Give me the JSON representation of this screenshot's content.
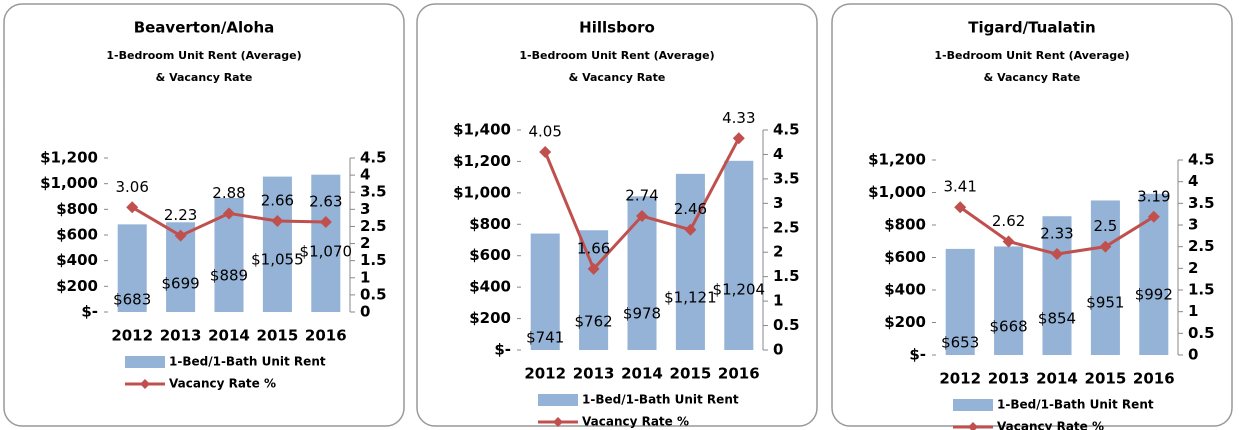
{
  "chart_data": [
    {
      "type": "bar-line",
      "title": "Beaverton/Aloha",
      "subtitle": [
        "1-Bedroom Unit Rent (Average)",
        "& Vacancy Rate"
      ],
      "categories": [
        "2012",
        "2013",
        "2014",
        "2015",
        "2016"
      ],
      "series": [
        {
          "name": "1-Bed/1-Bath Unit Rent",
          "type": "bar",
          "color": "#95b3d7",
          "values": [
            683,
            699,
            889,
            1055,
            1070
          ],
          "value_labels": [
            "$683",
            "$699",
            "$889",
            "$1,055",
            "$1,070"
          ]
        },
        {
          "name": "Vacancy Rate %",
          "type": "line",
          "axis": "y2",
          "color": "#c0504d",
          "values": [
            3.06,
            2.23,
            2.88,
            2.66,
            2.63
          ]
        }
      ],
      "ylim": [
        0,
        1200
      ],
      "yticks": [
        {
          "value": 0,
          "label": "$-"
        },
        {
          "value": 200,
          "label": "$200"
        },
        {
          "value": 400,
          "label": "$400"
        },
        {
          "value": 600,
          "label": "$600"
        },
        {
          "value": 800,
          "label": "$800"
        },
        {
          "value": 1000,
          "label": "$1,000"
        },
        {
          "value": 1200,
          "label": "$1,200"
        }
      ],
      "y2lim": [
        0,
        4.5
      ],
      "y2ticks": [
        0,
        0.5,
        1,
        1.5,
        2,
        2.5,
        3,
        3.5,
        4,
        4.5
      ],
      "legend": "bottom"
    },
    {
      "type": "bar-line",
      "title": "Hillsboro",
      "subtitle": [
        "1-Bedroom Unit Rent (Average)",
        "& Vacancy Rate"
      ],
      "categories": [
        "2012",
        "2013",
        "2014",
        "2015",
        "2016"
      ],
      "series": [
        {
          "name": "1-Bed/1-Bath Unit Rent",
          "type": "bar",
          "color": "#95b3d7",
          "values": [
            741,
            762,
            978,
            1121,
            1204
          ],
          "value_labels": [
            "$741",
            "$762",
            "$978",
            "$1,121",
            "$1,204"
          ]
        },
        {
          "name": "Vacancy Rate %",
          "type": "line",
          "axis": "y2",
          "color": "#c0504d",
          "values": [
            4.05,
            1.66,
            2.74,
            2.46,
            4.33
          ]
        }
      ],
      "ylim": [
        0,
        1400
      ],
      "yticks": [
        {
          "value": 0,
          "label": "$-"
        },
        {
          "value": 200,
          "label": "$200"
        },
        {
          "value": 400,
          "label": "$400"
        },
        {
          "value": 600,
          "label": "$600"
        },
        {
          "value": 800,
          "label": "$800"
        },
        {
          "value": 1000,
          "label": "$1,000"
        },
        {
          "value": 1200,
          "label": "$1,200"
        },
        {
          "value": 1400,
          "label": "$1,400"
        }
      ],
      "y2lim": [
        0,
        4.5
      ],
      "y2ticks": [
        0,
        0.5,
        1,
        1.5,
        2,
        2.5,
        3,
        3.5,
        4,
        4.5
      ],
      "legend": "bottom"
    },
    {
      "type": "bar-line",
      "title": "Tigard/Tualatin",
      "subtitle": [
        "1-Bedroom Unit Rent (Average)",
        "& Vacancy Rate"
      ],
      "categories": [
        "2012",
        "2013",
        "2014",
        "2015",
        "2016"
      ],
      "series": [
        {
          "name": "1-Bed/1-Bath Unit Rent",
          "type": "bar",
          "color": "#95b3d7",
          "values": [
            653,
            668,
            854,
            951,
            992
          ],
          "value_labels": [
            "$653",
            "$668",
            "$854",
            "$951",
            "$992"
          ]
        },
        {
          "name": "Vacancy Rate %",
          "type": "line",
          "axis": "y2",
          "color": "#c0504d",
          "values": [
            3.41,
            2.62,
            2.33,
            2.5,
            3.19
          ]
        }
      ],
      "ylim": [
        0,
        1200
      ],
      "yticks": [
        {
          "value": 0,
          "label": "$-"
        },
        {
          "value": 200,
          "label": "$200"
        },
        {
          "value": 400,
          "label": "$400"
        },
        {
          "value": 600,
          "label": "$600"
        },
        {
          "value": 800,
          "label": "$800"
        },
        {
          "value": 1000,
          "label": "$1,000"
        },
        {
          "value": 1200,
          "label": "$1,200"
        }
      ],
      "y2lim": [
        0,
        4.5
      ],
      "y2ticks": [
        0,
        0.5,
        1,
        1.5,
        2,
        2.5,
        3,
        3.5,
        4,
        4.5
      ],
      "legend": "bottom"
    }
  ]
}
